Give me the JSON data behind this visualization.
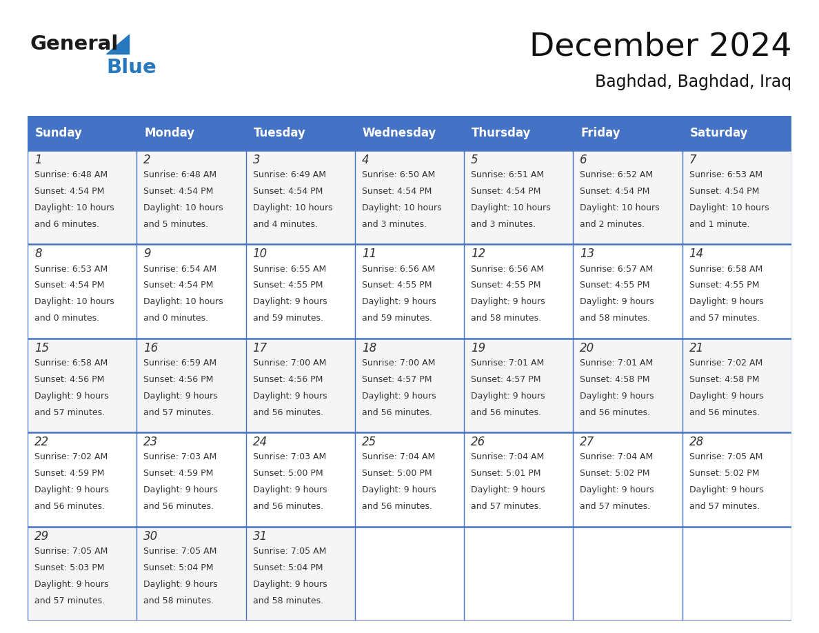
{
  "title": "December 2024",
  "subtitle": "Baghdad, Baghdad, Iraq",
  "header_bg_color": "#4472C4",
  "header_text_color": "#FFFFFF",
  "border_color": "#4472C4",
  "text_color": "#333333",
  "day_names": [
    "Sunday",
    "Monday",
    "Tuesday",
    "Wednesday",
    "Thursday",
    "Friday",
    "Saturday"
  ],
  "calendar_data": [
    [
      {
        "day": "1",
        "sunrise": "6:48 AM",
        "sunset": "4:54 PM",
        "daylight_line1": "Daylight: 10 hours",
        "daylight_line2": "and 6 minutes."
      },
      {
        "day": "2",
        "sunrise": "6:48 AM",
        "sunset": "4:54 PM",
        "daylight_line1": "Daylight: 10 hours",
        "daylight_line2": "and 5 minutes."
      },
      {
        "day": "3",
        "sunrise": "6:49 AM",
        "sunset": "4:54 PM",
        "daylight_line1": "Daylight: 10 hours",
        "daylight_line2": "and 4 minutes."
      },
      {
        "day": "4",
        "sunrise": "6:50 AM",
        "sunset": "4:54 PM",
        "daylight_line1": "Daylight: 10 hours",
        "daylight_line2": "and 3 minutes."
      },
      {
        "day": "5",
        "sunrise": "6:51 AM",
        "sunset": "4:54 PM",
        "daylight_line1": "Daylight: 10 hours",
        "daylight_line2": "and 3 minutes."
      },
      {
        "day": "6",
        "sunrise": "6:52 AM",
        "sunset": "4:54 PM",
        "daylight_line1": "Daylight: 10 hours",
        "daylight_line2": "and 2 minutes."
      },
      {
        "day": "7",
        "sunrise": "6:53 AM",
        "sunset": "4:54 PM",
        "daylight_line1": "Daylight: 10 hours",
        "daylight_line2": "and 1 minute."
      }
    ],
    [
      {
        "day": "8",
        "sunrise": "6:53 AM",
        "sunset": "4:54 PM",
        "daylight_line1": "Daylight: 10 hours",
        "daylight_line2": "and 0 minutes."
      },
      {
        "day": "9",
        "sunrise": "6:54 AM",
        "sunset": "4:54 PM",
        "daylight_line1": "Daylight: 10 hours",
        "daylight_line2": "and 0 minutes."
      },
      {
        "day": "10",
        "sunrise": "6:55 AM",
        "sunset": "4:55 PM",
        "daylight_line1": "Daylight: 9 hours",
        "daylight_line2": "and 59 minutes."
      },
      {
        "day": "11",
        "sunrise": "6:56 AM",
        "sunset": "4:55 PM",
        "daylight_line1": "Daylight: 9 hours",
        "daylight_line2": "and 59 minutes."
      },
      {
        "day": "12",
        "sunrise": "6:56 AM",
        "sunset": "4:55 PM",
        "daylight_line1": "Daylight: 9 hours",
        "daylight_line2": "and 58 minutes."
      },
      {
        "day": "13",
        "sunrise": "6:57 AM",
        "sunset": "4:55 PM",
        "daylight_line1": "Daylight: 9 hours",
        "daylight_line2": "and 58 minutes."
      },
      {
        "day": "14",
        "sunrise": "6:58 AM",
        "sunset": "4:55 PM",
        "daylight_line1": "Daylight: 9 hours",
        "daylight_line2": "and 57 minutes."
      }
    ],
    [
      {
        "day": "15",
        "sunrise": "6:58 AM",
        "sunset": "4:56 PM",
        "daylight_line1": "Daylight: 9 hours",
        "daylight_line2": "and 57 minutes."
      },
      {
        "day": "16",
        "sunrise": "6:59 AM",
        "sunset": "4:56 PM",
        "daylight_line1": "Daylight: 9 hours",
        "daylight_line2": "and 57 minutes."
      },
      {
        "day": "17",
        "sunrise": "7:00 AM",
        "sunset": "4:56 PM",
        "daylight_line1": "Daylight: 9 hours",
        "daylight_line2": "and 56 minutes."
      },
      {
        "day": "18",
        "sunrise": "7:00 AM",
        "sunset": "4:57 PM",
        "daylight_line1": "Daylight: 9 hours",
        "daylight_line2": "and 56 minutes."
      },
      {
        "day": "19",
        "sunrise": "7:01 AM",
        "sunset": "4:57 PM",
        "daylight_line1": "Daylight: 9 hours",
        "daylight_line2": "and 56 minutes."
      },
      {
        "day": "20",
        "sunrise": "7:01 AM",
        "sunset": "4:58 PM",
        "daylight_line1": "Daylight: 9 hours",
        "daylight_line2": "and 56 minutes."
      },
      {
        "day": "21",
        "sunrise": "7:02 AM",
        "sunset": "4:58 PM",
        "daylight_line1": "Daylight: 9 hours",
        "daylight_line2": "and 56 minutes."
      }
    ],
    [
      {
        "day": "22",
        "sunrise": "7:02 AM",
        "sunset": "4:59 PM",
        "daylight_line1": "Daylight: 9 hours",
        "daylight_line2": "and 56 minutes."
      },
      {
        "day": "23",
        "sunrise": "7:03 AM",
        "sunset": "4:59 PM",
        "daylight_line1": "Daylight: 9 hours",
        "daylight_line2": "and 56 minutes."
      },
      {
        "day": "24",
        "sunrise": "7:03 AM",
        "sunset": "5:00 PM",
        "daylight_line1": "Daylight: 9 hours",
        "daylight_line2": "and 56 minutes."
      },
      {
        "day": "25",
        "sunrise": "7:04 AM",
        "sunset": "5:00 PM",
        "daylight_line1": "Daylight: 9 hours",
        "daylight_line2": "and 56 minutes."
      },
      {
        "day": "26",
        "sunrise": "7:04 AM",
        "sunset": "5:01 PM",
        "daylight_line1": "Daylight: 9 hours",
        "daylight_line2": "and 57 minutes."
      },
      {
        "day": "27",
        "sunrise": "7:04 AM",
        "sunset": "5:02 PM",
        "daylight_line1": "Daylight: 9 hours",
        "daylight_line2": "and 57 minutes."
      },
      {
        "day": "28",
        "sunrise": "7:05 AM",
        "sunset": "5:02 PM",
        "daylight_line1": "Daylight: 9 hours",
        "daylight_line2": "and 57 minutes."
      }
    ],
    [
      {
        "day": "29",
        "sunrise": "7:05 AM",
        "sunset": "5:03 PM",
        "daylight_line1": "Daylight: 9 hours",
        "daylight_line2": "and 57 minutes."
      },
      {
        "day": "30",
        "sunrise": "7:05 AM",
        "sunset": "5:04 PM",
        "daylight_line1": "Daylight: 9 hours",
        "daylight_line2": "and 58 minutes."
      },
      {
        "day": "31",
        "sunrise": "7:05 AM",
        "sunset": "5:04 PM",
        "daylight_line1": "Daylight: 9 hours",
        "daylight_line2": "and 58 minutes."
      },
      null,
      null,
      null,
      null
    ]
  ],
  "logo_general_color": "#1a1a1a",
  "logo_blue_color": "#2878BE",
  "fig_width": 11.88,
  "fig_height": 9.18,
  "title_fontsize": 34,
  "subtitle_fontsize": 17,
  "day_header_fontsize": 12,
  "day_num_fontsize": 12,
  "cell_text_fontsize": 9
}
